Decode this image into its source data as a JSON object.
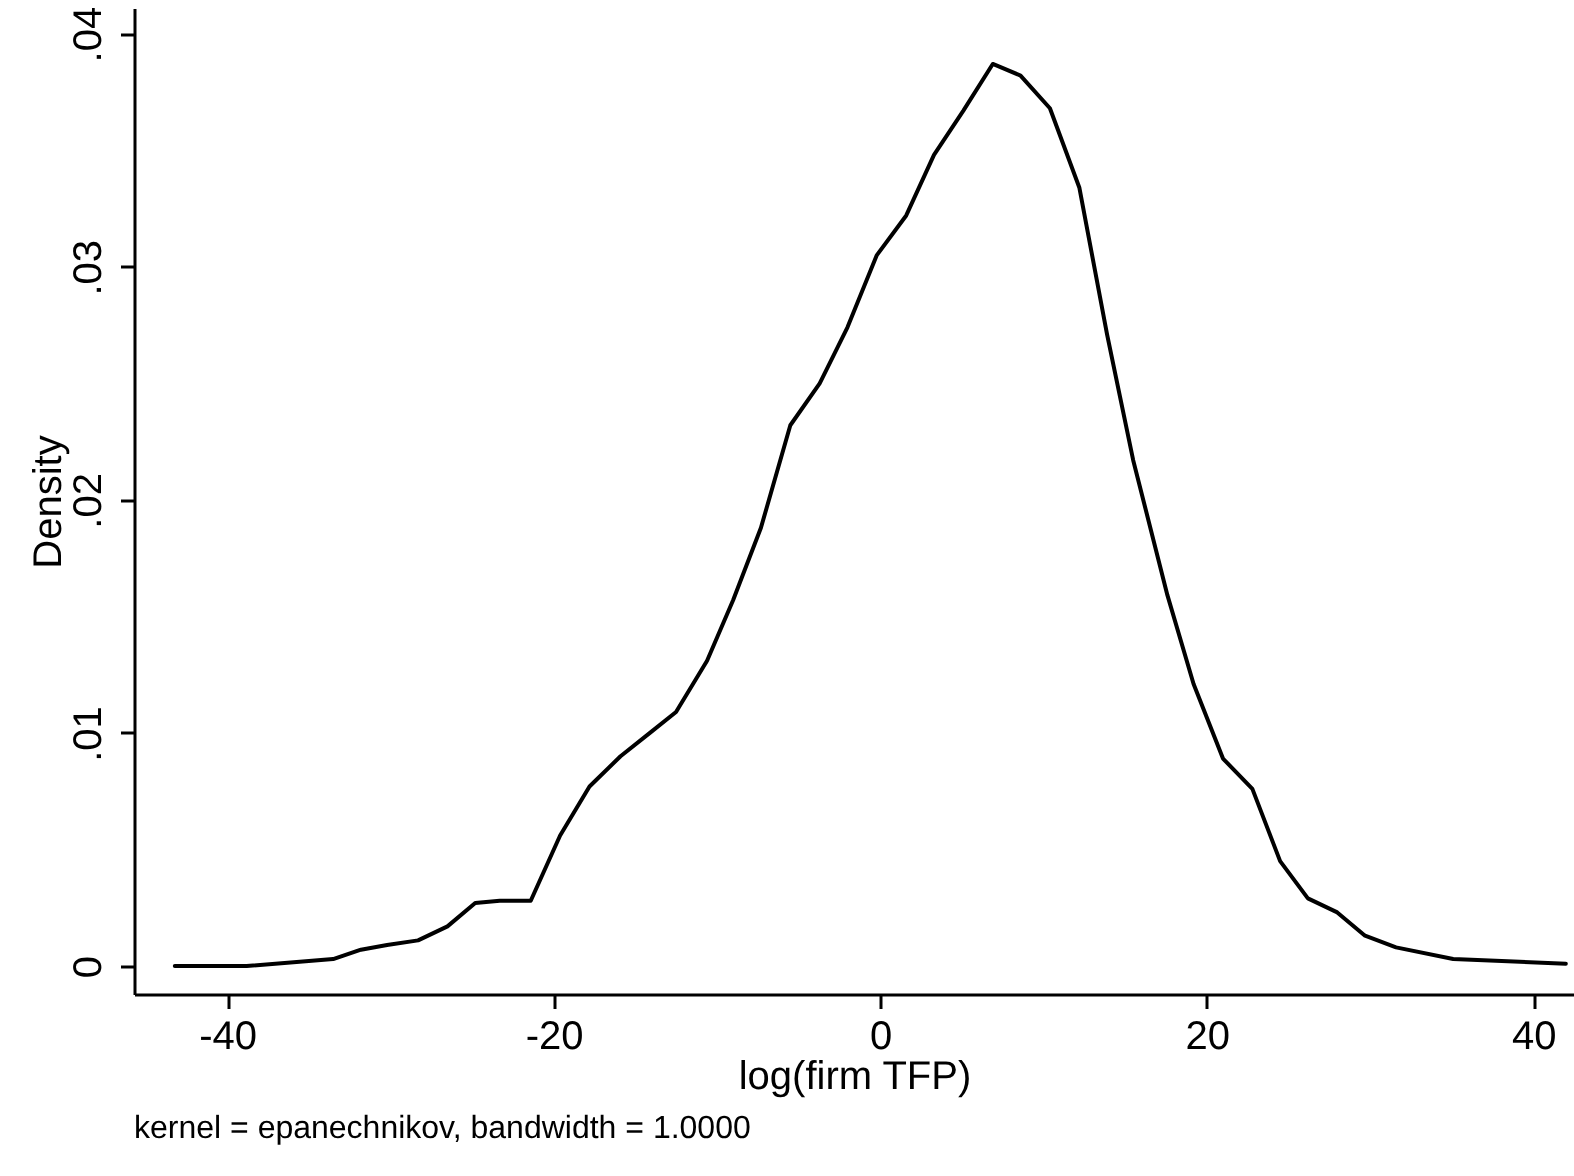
{
  "chart_data": {
    "type": "line",
    "xlabel": "log(firm TFP)",
    "ylabel": "Density",
    "annotations": [
      "kernel = epanechnikov, bandwidth = 1.0000"
    ],
    "x": [
      -43.2,
      -38.8,
      -33.5,
      -31.8,
      -30.2,
      -28.3,
      -26.5,
      -24.8,
      -23.3,
      -21.4,
      -19.6,
      -17.8,
      -15.9,
      -14.1,
      -12.5,
      -10.6,
      -9.0,
      -7.3,
      -5.5,
      -3.7,
      -2.0,
      -0.2,
      1.6,
      3.3,
      5.1,
      6.9,
      8.6,
      10.4,
      12.2,
      13.9,
      15.5,
      17.6,
      19.2,
      21.0,
      22.8,
      24.5,
      26.2,
      28.0,
      29.7,
      31.6,
      35.1,
      42.0
    ],
    "series": [
      {
        "color": "#000000",
        "values": [
          0.0,
          0.0,
          0.0003,
          0.0007,
          0.0009,
          0.0011,
          0.0017,
          0.0027,
          0.0028,
          0.0028,
          0.0056,
          0.0077,
          0.009,
          0.01,
          0.0109,
          0.0131,
          0.0157,
          0.0188,
          0.0232,
          0.025,
          0.0274,
          0.0305,
          0.0322,
          0.0348,
          0.0367,
          0.0387,
          0.0382,
          0.0368,
          0.0334,
          0.0271,
          0.0217,
          0.0159,
          0.0121,
          0.0089,
          0.0076,
          0.0045,
          0.0029,
          0.0023,
          0.0013,
          0.0008,
          0.0003,
          0.0001
        ]
      }
    ],
    "xlim": [
      -45.7,
      42.5
    ],
    "xticks": [
      -40,
      -20,
      0,
      20,
      40
    ],
    "ylim": [
      -0.0012,
      0.0411
    ],
    "yticks": [
      {
        "value": 0,
        "label": "0"
      },
      {
        "value": 0.01,
        "label": ".01"
      },
      {
        "value": 0.02,
        "label": ".02"
      },
      {
        "value": 0.03,
        "label": ".03"
      },
      {
        "value": 0.04,
        "label": ".04"
      }
    ],
    "grid": false,
    "marker": "none",
    "line_style": "solid"
  }
}
